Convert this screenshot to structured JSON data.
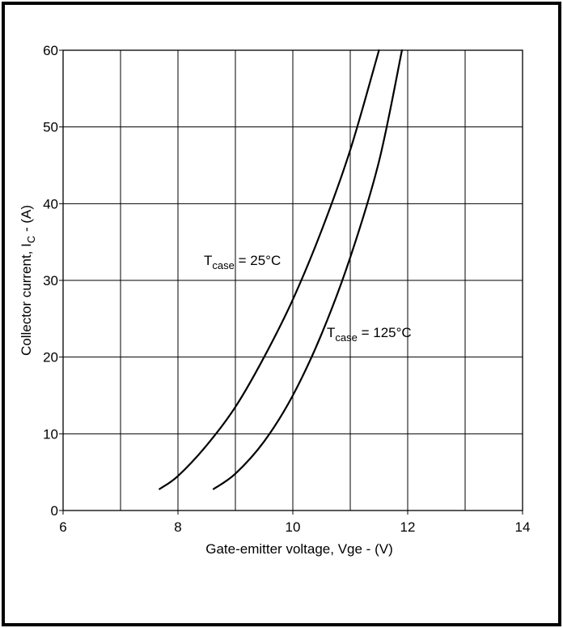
{
  "chart_data": {
    "type": "line",
    "xlabel": "Gate-emitter voltage, Vge - (V)",
    "ylabel": {
      "main": "Collector current, I",
      "sub": "C",
      "tail": " - (A)"
    },
    "xlim": [
      6,
      14
    ],
    "ylim": [
      0,
      60
    ],
    "x_ticks": [
      6,
      8,
      10,
      12,
      14
    ],
    "x_grid": [
      6,
      7,
      8,
      9,
      10,
      11,
      12,
      13,
      14
    ],
    "y_ticks": [
      0,
      10,
      20,
      30,
      40,
      50,
      60
    ],
    "grid": true,
    "series": [
      {
        "label": {
          "main": "T",
          "sub": "case",
          "tail": " = 25°C"
        },
        "points": [
          [
            7.68,
            2.8
          ],
          [
            8.0,
            4.5
          ],
          [
            8.5,
            8.5
          ],
          [
            9.0,
            13.5
          ],
          [
            9.5,
            20.0
          ],
          [
            10.0,
            27.5
          ],
          [
            10.5,
            36.5
          ],
          [
            11.0,
            47.0
          ],
          [
            11.5,
            60.0
          ]
        ]
      },
      {
        "label": {
          "main": "T",
          "sub": "case",
          "tail": " = 125°C"
        },
        "points": [
          [
            8.62,
            2.8
          ],
          [
            9.0,
            4.8
          ],
          [
            9.5,
            9.0
          ],
          [
            10.0,
            15.0
          ],
          [
            10.5,
            23.0
          ],
          [
            11.0,
            33.0
          ],
          [
            11.5,
            45.5
          ],
          [
            11.9,
            60.0
          ]
        ]
      }
    ]
  }
}
